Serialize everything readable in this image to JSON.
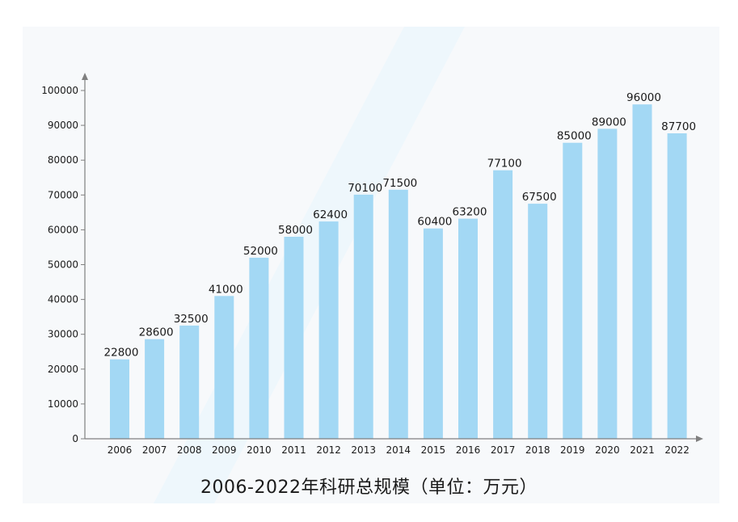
{
  "chart_data": {
    "type": "bar",
    "title": "2006-2022年科研总规模（单位：万元）",
    "xlabel": "",
    "ylabel": "",
    "categories": [
      "2006",
      "2007",
      "2008",
      "2009",
      "2010",
      "2011",
      "2012",
      "2013",
      "2014",
      "2015",
      "2016",
      "2017",
      "2018",
      "2019",
      "2020",
      "2021",
      "2022"
    ],
    "values": [
      22800,
      28600,
      32500,
      41000,
      52000,
      58000,
      62400,
      70100,
      71500,
      60400,
      63200,
      77100,
      67500,
      85000,
      89000,
      96000,
      87700
    ],
    "ylim": [
      0,
      100000
    ],
    "yticks": [
      "0",
      "10000",
      "20000",
      "30000",
      "40000",
      "50000",
      "60000",
      "70000",
      "80000",
      "90000",
      "100000"
    ],
    "data_labels": true,
    "grid": false,
    "legend": "none",
    "colors": {
      "bar": "#a3d8f4",
      "axis": "#7f7f7f",
      "text": "#1a1a1a",
      "background_stripe": "#eef7fc",
      "plot_background": "#f7f9fb"
    }
  }
}
